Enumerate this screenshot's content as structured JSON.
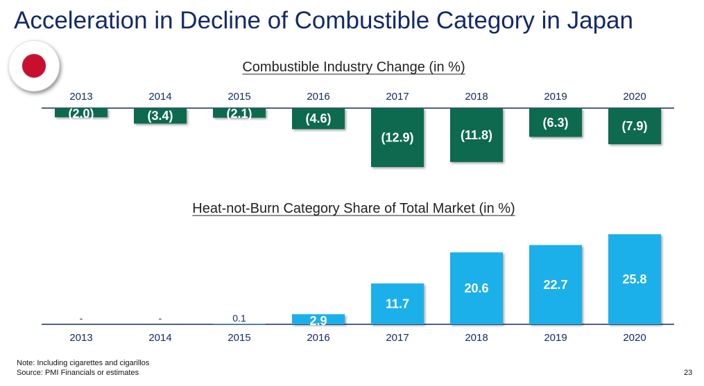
{
  "title": "Acceleration in Decline of Combustible Category in Japan",
  "page_number": "23",
  "footnotes": {
    "note": "Note: Including cigarettes and cigarillos",
    "source": "Source: PMI Financials or estimates"
  },
  "colors": {
    "title": "#14296b",
    "combustible_bar": "#0b6b50",
    "hnb_bar": "#1ab0ea",
    "axis": "#14296b",
    "flag_red": "#c8102e"
  },
  "icons": {
    "flag": "japan-flag-icon"
  },
  "chart_data": [
    {
      "type": "bar",
      "title": "Combustible Industry Change (in %)",
      "categories": [
        "2013",
        "2014",
        "2015",
        "2016",
        "2017",
        "2018",
        "2019",
        "2020"
      ],
      "values": [
        -2.0,
        -3.4,
        -2.1,
        -4.6,
        -12.9,
        -11.8,
        -6.3,
        -7.9
      ],
      "labels": [
        "(2.0)",
        "(3.4)",
        "(2.1)",
        "(4.6)",
        "(12.9)",
        "(11.8)",
        "(6.3)",
        "(7.9)"
      ],
      "xaxis_position": "top",
      "ylim": [
        -14,
        0
      ],
      "grid": false,
      "legend": "none"
    },
    {
      "type": "bar",
      "title": "Heat-not-Burn Category Share of Total Market (in %)",
      "categories": [
        "2013",
        "2014",
        "2015",
        "2016",
        "2017",
        "2018",
        "2019",
        "2020"
      ],
      "values": [
        0,
        0,
        0.1,
        2.9,
        11.7,
        20.6,
        22.7,
        25.8
      ],
      "labels": [
        "-",
        "-",
        "0.1",
        "2.9",
        "11.7",
        "20.6",
        "22.7",
        "25.8"
      ],
      "xaxis_position": "bottom",
      "ylim": [
        0,
        27
      ],
      "grid": false,
      "legend": "none"
    }
  ]
}
